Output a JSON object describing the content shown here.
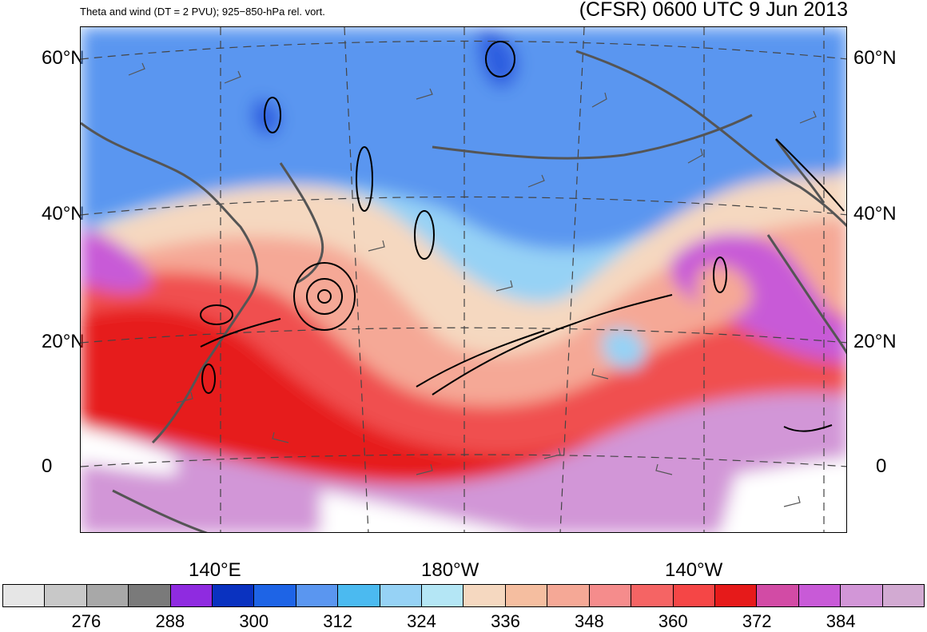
{
  "header": {
    "left_title": "Theta and wind (DT = 2 PVU); 925−850-hPa rel. vort.",
    "right_title": "(CFSR) 0600 UTC 9 Jun 2013"
  },
  "axes": {
    "lat_labels": [
      "60°N",
      "40°N",
      "20°N",
      "0"
    ],
    "lon_labels": [
      "140°E",
      "180°W",
      "140°W"
    ]
  },
  "colorbar": {
    "colors": [
      "#e6e6e6",
      "#c8c8c8",
      "#a8a8a8",
      "#7a7a7a",
      "#8f2be0",
      "#0a32c0",
      "#1e64e6",
      "#5a96f0",
      "#4bbaf0",
      "#96d2f5",
      "#b4e6f5",
      "#f5d8c0",
      "#f5bea0",
      "#f5a896",
      "#f58c8c",
      "#f56464",
      "#f54646",
      "#e61a1a",
      "#d24ba5",
      "#c85ad7",
      "#d296d7",
      "#d2aad2"
    ],
    "tick_labels": [
      "276",
      "288",
      "300",
      "312",
      "324",
      "336",
      "348",
      "360",
      "372",
      "384"
    ]
  },
  "map_colors": {
    "cold_deep": "#2e5fe0",
    "cold": "#5a96f0",
    "cool": "#96d2f5",
    "mild": "#f5d8c0",
    "warm": "#f5a896",
    "hot": "#f05050",
    "hottest": "#e61a1a",
    "tropical": "#c85ad7",
    "tropical_light": "#d296d7"
  }
}
